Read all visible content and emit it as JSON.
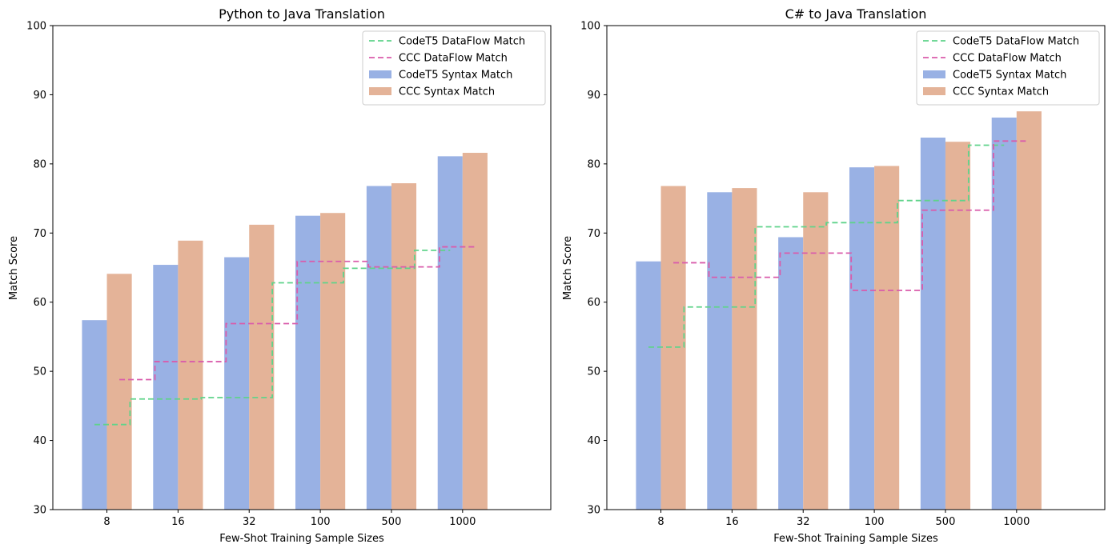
{
  "chart_data": [
    {
      "type": "bar",
      "title": "Python to Java Translation",
      "xlabel": "Few-Shot Training Sample Sizes",
      "ylabel": "Match Score",
      "categories": [
        "8",
        "16",
        "32",
        "100",
        "500",
        "1000"
      ],
      "ylim": [
        30,
        100
      ],
      "yticks": [
        30,
        40,
        50,
        60,
        70,
        80,
        90,
        100
      ],
      "legend_position": "top-right",
      "grid": false,
      "series": [
        {
          "name": "CodeT5 Syntax Match",
          "kind": "bar",
          "color": "#99b1e4",
          "values": [
            57.4,
            65.4,
            66.5,
            72.5,
            76.8,
            81.1
          ]
        },
        {
          "name": "CCC Syntax Match",
          "kind": "bar",
          "color": "#e4b398",
          "values": [
            64.1,
            68.9,
            71.2,
            72.9,
            77.2,
            81.6
          ]
        },
        {
          "name": "CodeT5 DataFlow Match",
          "kind": "step-line",
          "color": "#5fd38a",
          "values": [
            42.3,
            46.0,
            46.2,
            62.8,
            64.9,
            67.5
          ]
        },
        {
          "name": "CCC DataFlow Match",
          "kind": "step-line",
          "color": "#d95cab",
          "values": [
            48.8,
            51.4,
            56.9,
            65.9,
            65.1,
            68.0
          ]
        }
      ],
      "legend_order": [
        "CodeT5 DataFlow Match",
        "CCC DataFlow Match",
        "CodeT5 Syntax Match",
        "CCC Syntax Match"
      ]
    },
    {
      "type": "bar",
      "title": "C# to Java Translation",
      "xlabel": "Few-Shot Training Sample Sizes",
      "ylabel": "Match Score",
      "categories": [
        "8",
        "16",
        "32",
        "100",
        "500",
        "1000"
      ],
      "ylim": [
        30,
        100
      ],
      "yticks": [
        30,
        40,
        50,
        60,
        70,
        80,
        90,
        100
      ],
      "legend_position": "top-right",
      "grid": false,
      "series": [
        {
          "name": "CodeT5 Syntax Match",
          "kind": "bar",
          "color": "#99b1e4",
          "values": [
            65.9,
            75.9,
            69.4,
            79.5,
            83.8,
            86.7
          ]
        },
        {
          "name": "CCC Syntax Match",
          "kind": "bar",
          "color": "#e4b398",
          "values": [
            76.8,
            76.5,
            75.9,
            79.7,
            83.2,
            87.6
          ]
        },
        {
          "name": "CodeT5 DataFlow Match",
          "kind": "step-line",
          "color": "#5fd38a",
          "values": [
            53.5,
            59.3,
            70.9,
            71.5,
            74.7,
            82.7
          ]
        },
        {
          "name": "CCC DataFlow Match",
          "kind": "step-line",
          "color": "#d95cab",
          "values": [
            65.7,
            63.6,
            67.1,
            61.7,
            73.3,
            83.3
          ]
        }
      ],
      "legend_order": [
        "CodeT5 DataFlow Match",
        "CCC DataFlow Match",
        "CodeT5 Syntax Match",
        "CCC Syntax Match"
      ]
    }
  ]
}
